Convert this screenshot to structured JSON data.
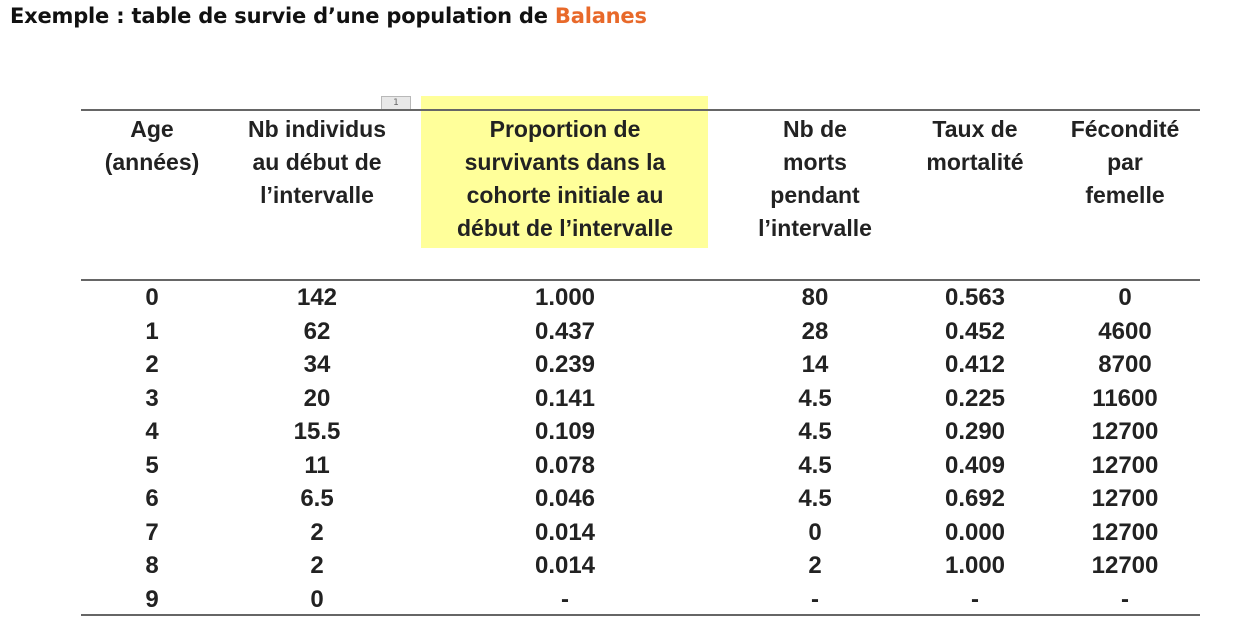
{
  "title": {
    "prefix": "Exemple : table de survie d’une population de ",
    "highlight": "Balanes"
  },
  "marker_label": "1",
  "colors": {
    "accent": "#e8692a",
    "highlight": "#ffff9a",
    "rule": "#666666"
  },
  "table": {
    "headers": [
      [
        "Age",
        "(années)"
      ],
      [
        "Nb individus",
        "au début de",
        "l’intervalle"
      ],
      [
        "Proportion de",
        "survivants dans la",
        "cohorte initiale au",
        "début de l’intervalle"
      ],
      [
        "Nb de",
        "morts",
        "pendant",
        "l’intervalle"
      ],
      [
        "Taux de",
        "mortalité"
      ],
      [
        "Fécondité",
        "par",
        "femelle"
      ]
    ],
    "rows": [
      [
        "0",
        "142",
        "1.000",
        "80",
        "0.563",
        "0"
      ],
      [
        "1",
        "62",
        "0.437",
        "28",
        "0.452",
        "4600"
      ],
      [
        "2",
        "34",
        "0.239",
        "14",
        "0.412",
        "8700"
      ],
      [
        "3",
        "20",
        "0.141",
        "4.5",
        "0.225",
        "11600"
      ],
      [
        "4",
        "15.5",
        "0.109",
        "4.5",
        "0.290",
        "12700"
      ],
      [
        "5",
        "11",
        "0.078",
        "4.5",
        "0.409",
        "12700"
      ],
      [
        "6",
        "6.5",
        "0.046",
        "4.5",
        "0.692",
        "12700"
      ],
      [
        "7",
        "2",
        "0.014",
        "0",
        "0.000",
        "12700"
      ],
      [
        "8",
        "2",
        "0.014",
        "2",
        "1.000",
        "12700"
      ],
      [
        "9",
        "0",
        "-",
        "-",
        "-",
        "-"
      ]
    ]
  }
}
